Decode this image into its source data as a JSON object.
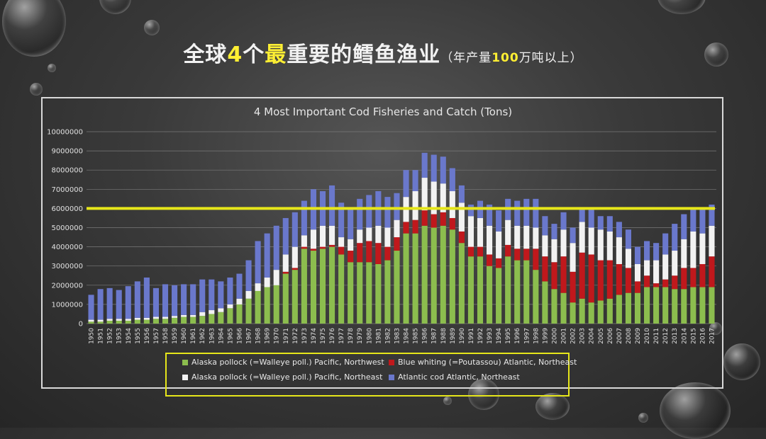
{
  "slide": {
    "title_part1": "全球",
    "title_num": "4",
    "title_part2": "个",
    "title_emph": "最",
    "title_part3": "重要的鳕鱼渔业",
    "title_sub1": "（年产量",
    "title_sub_num": "100",
    "title_sub2": "万吨以上）"
  },
  "colors": {
    "pollock_nw": "#8cbd4e",
    "blue_whiting": "#c0181c",
    "pollock_ne": "#f2f2f2",
    "atlantic_cod": "#6a78cc",
    "threshold_line": "#e6e61a"
  },
  "chart_data": {
    "type": "bar",
    "stacked": true,
    "title": "4 Most Important Cod Fisheries and Catch (Tons)",
    "ylim": [
      0,
      10000000
    ],
    "yticks": [
      "0",
      "1000000",
      "2000000",
      "3000000",
      "4000000",
      "5000000",
      "6000000",
      "7000000",
      "8000000",
      "9000000",
      "10000000"
    ],
    "grid": true,
    "legend_position": "bottom",
    "threshold": 6000000,
    "x": [
      "1950",
      "1951",
      "1952",
      "1953",
      "1954",
      "1955",
      "1956",
      "1957",
      "1958",
      "1959",
      "1960",
      "1961",
      "1962",
      "1963",
      "1964",
      "1965",
      "1966",
      "1967",
      "1968",
      "1969",
      "1970",
      "1971",
      "1972",
      "1973",
      "1974",
      "1975",
      "1976",
      "1977",
      "1978",
      "1979",
      "1980",
      "1981",
      "1982",
      "1983",
      "1984",
      "1985",
      "1986",
      "1987",
      "1988",
      "1989",
      "1990",
      "1991",
      "1992",
      "1993",
      "1994",
      "1995",
      "1996",
      "1997",
      "1998",
      "1999",
      "2000",
      "2001",
      "2002",
      "2003",
      "2004",
      "2005",
      "2006",
      "2007",
      "2008",
      "2009",
      "2010",
      "2011",
      "2012",
      "2013",
      "2014",
      "2015",
      "2016",
      "2017"
    ],
    "series": [
      {
        "name": "Alaska pollock (=Walleye poll.) Pacific, Northwest",
        "values": [
          100000,
          100000,
          150000,
          150000,
          150000,
          200000,
          200000,
          250000,
          250000,
          300000,
          350000,
          350000,
          400000,
          500000,
          600000,
          800000,
          1000000,
          1300000,
          1700000,
          1900000,
          2000000,
          2600000,
          2800000,
          3900000,
          3800000,
          3900000,
          4000000,
          3600000,
          3200000,
          3200000,
          3200000,
          3100000,
          3300000,
          3800000,
          4700000,
          4700000,
          5100000,
          5000000,
          5100000,
          4900000,
          4200000,
          3500000,
          3500000,
          3000000,
          2900000,
          3500000,
          3300000,
          3300000,
          2800000,
          2200000,
          1800000,
          1600000,
          1100000,
          1300000,
          1100000,
          1200000,
          1300000,
          1500000,
          1600000,
          1600000,
          1900000,
          1900000,
          1900000,
          1800000,
          1800000,
          1900000,
          1900000,
          1900000
        ]
      },
      {
        "name": "Blue whiting (=Poutassou) Atlantic, Northeast",
        "values": [
          0,
          0,
          0,
          0,
          0,
          0,
          0,
          0,
          0,
          0,
          0,
          0,
          0,
          0,
          0,
          0,
          0,
          0,
          0,
          0,
          0,
          100000,
          100000,
          100000,
          100000,
          100000,
          100000,
          400000,
          600000,
          1000000,
          1100000,
          1100000,
          700000,
          700000,
          600000,
          700000,
          800000,
          700000,
          700000,
          600000,
          600000,
          500000,
          500000,
          600000,
          500000,
          600000,
          600000,
          600000,
          1100000,
          1300000,
          1400000,
          1900000,
          1600000,
          2400000,
          2500000,
          2100000,
          2000000,
          1600000,
          1300000,
          600000,
          600000,
          200000,
          400000,
          700000,
          1100000,
          1000000,
          1200000,
          1600000
        ]
      },
      {
        "name": "Alaska pollock (=Walleye poll.) Pacific, Northeast",
        "values": [
          100000,
          100000,
          100000,
          100000,
          100000,
          100000,
          100000,
          100000,
          100000,
          100000,
          100000,
          100000,
          200000,
          200000,
          200000,
          200000,
          300000,
          400000,
          400000,
          500000,
          800000,
          900000,
          1100000,
          600000,
          1000000,
          1100000,
          1000000,
          500000,
          600000,
          700000,
          700000,
          900000,
          1000000,
          900000,
          1300000,
          1500000,
          1700000,
          1700000,
          1500000,
          1400000,
          1500000,
          1600000,
          1500000,
          1500000,
          1400000,
          1300000,
          1200000,
          1200000,
          1100000,
          1100000,
          1200000,
          1400000,
          1500000,
          1600000,
          1400000,
          1600000,
          1500000,
          1400000,
          1000000,
          900000,
          800000,
          1200000,
          1300000,
          1300000,
          1500000,
          1900000,
          1600000,
          1600000
        ]
      },
      {
        "name": "Atlantic cod Atlantic, Northeast",
        "values": [
          1300000,
          1600000,
          1600000,
          1500000,
          1700000,
          1900000,
          2100000,
          1500000,
          1700000,
          1600000,
          1600000,
          1600000,
          1700000,
          1600000,
          1400000,
          1400000,
          1300000,
          1600000,
          2200000,
          2300000,
          2300000,
          1900000,
          1800000,
          1800000,
          2100000,
          1800000,
          2100000,
          1800000,
          1600000,
          1600000,
          1700000,
          1800000,
          1600000,
          1400000,
          1400000,
          1100000,
          1300000,
          1400000,
          1400000,
          1200000,
          900000,
          600000,
          900000,
          1100000,
          1100000,
          1100000,
          1300000,
          1400000,
          1500000,
          1000000,
          800000,
          900000,
          800000,
          700000,
          1000000,
          700000,
          800000,
          800000,
          1000000,
          900000,
          1000000,
          900000,
          1100000,
          1400000,
          1300000,
          1200000,
          1300000,
          1100000
        ]
      }
    ]
  }
}
